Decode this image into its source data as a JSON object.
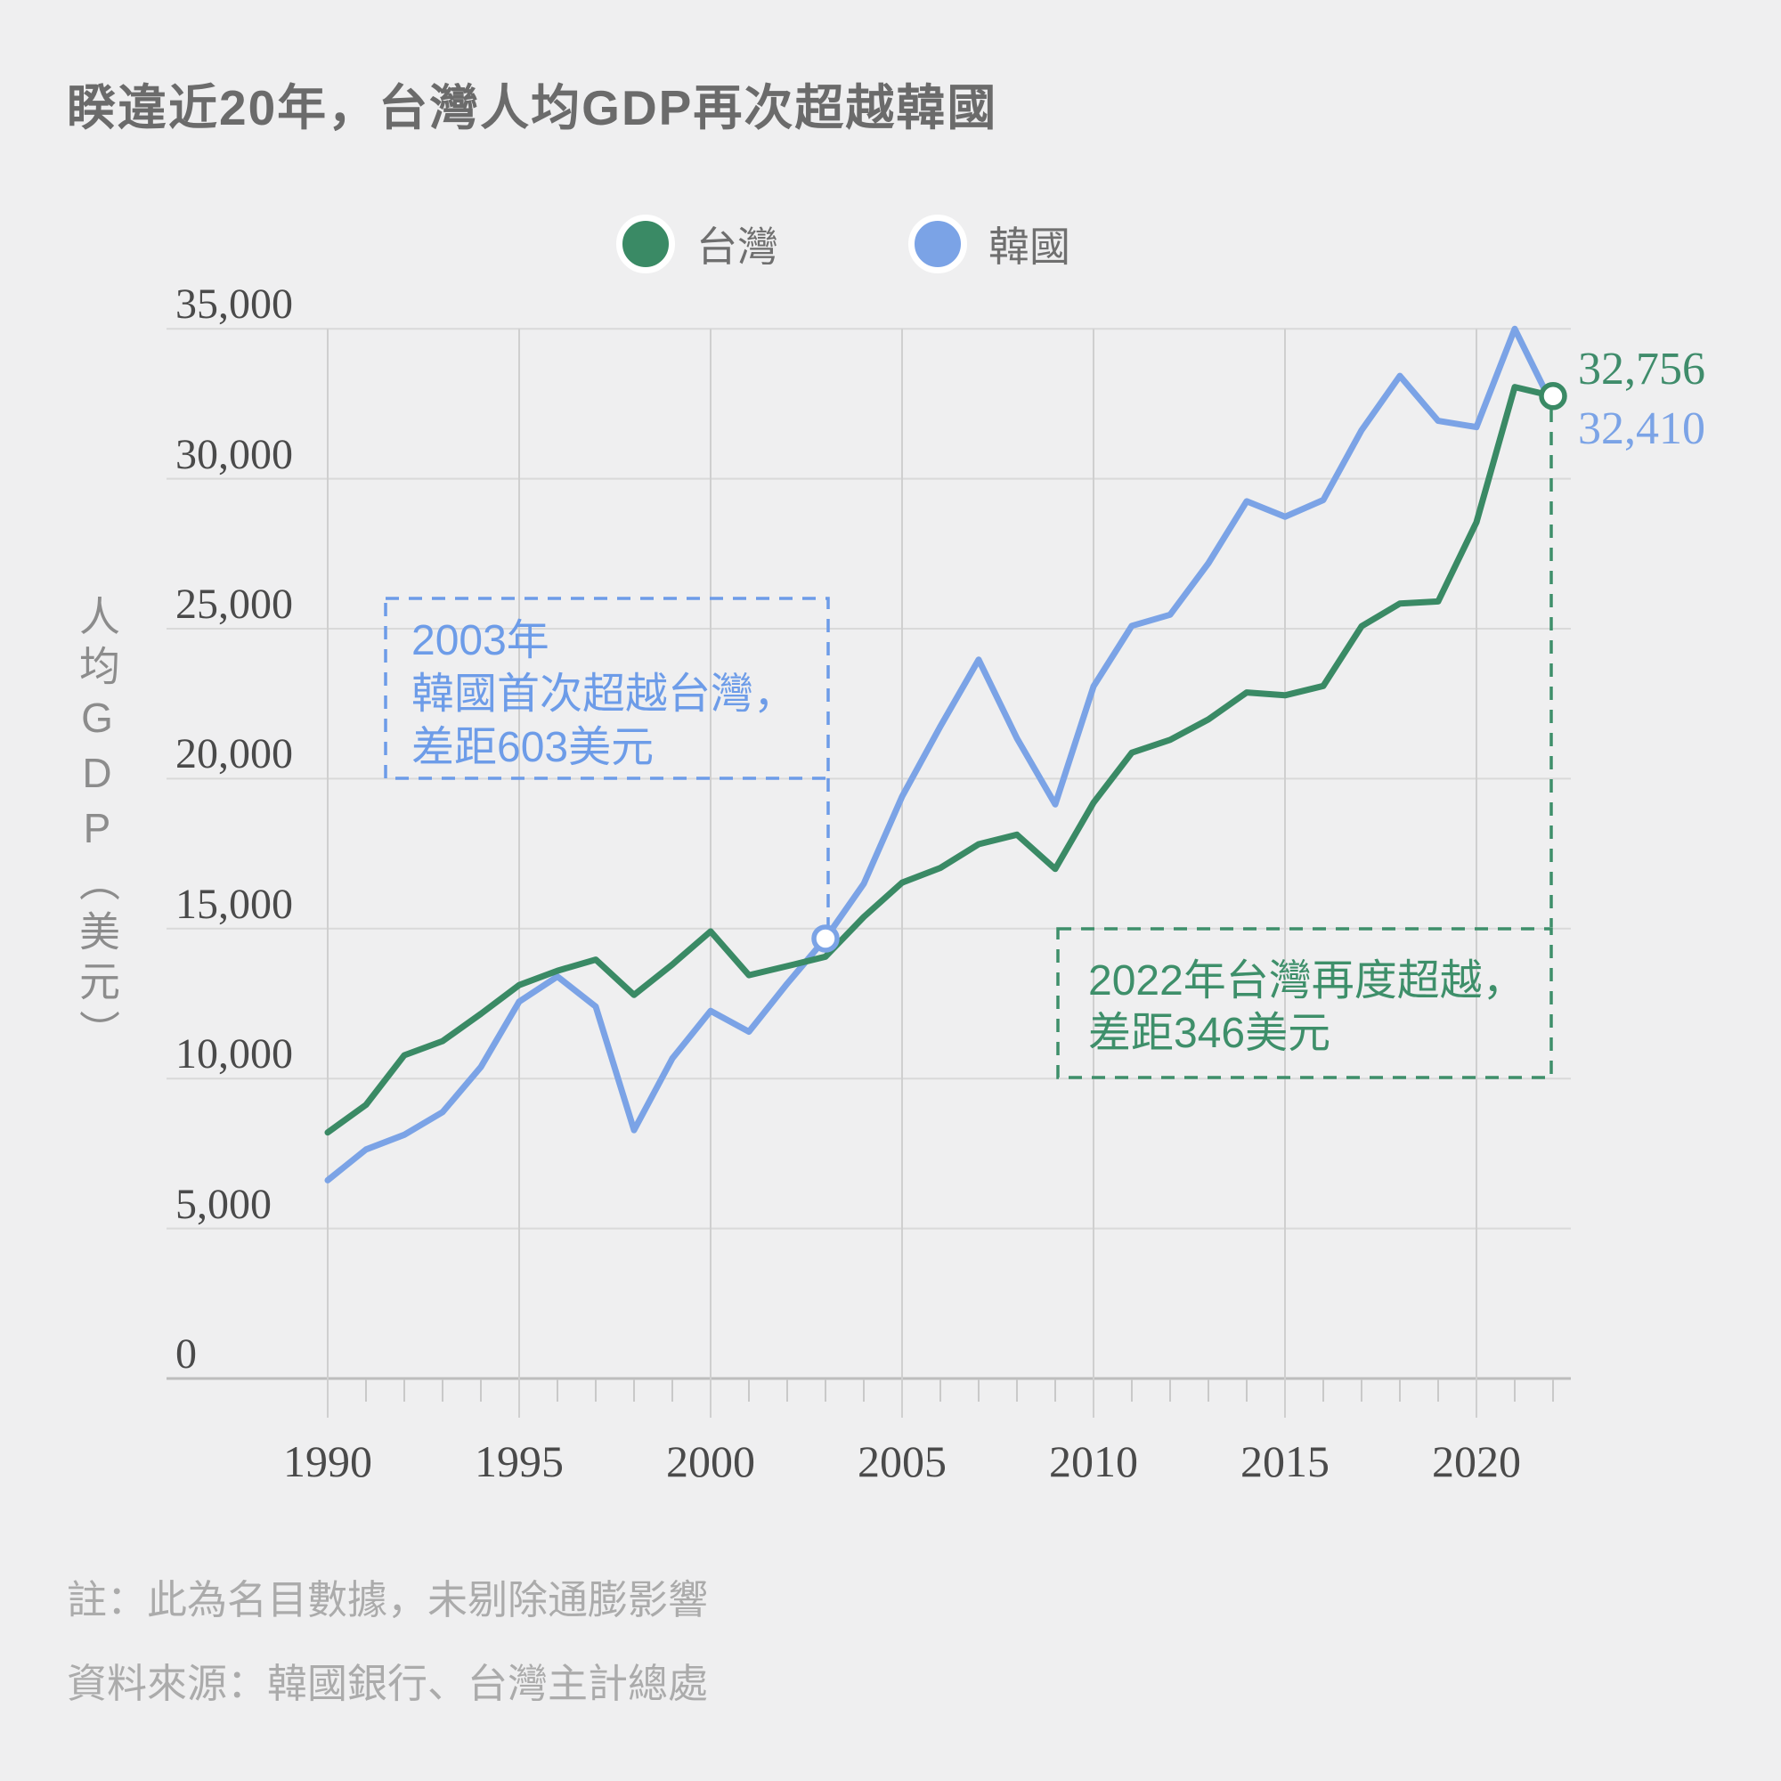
{
  "title": "睽違近20年，台灣人均GDP再次超越韓國",
  "legend": [
    {
      "label": "台灣",
      "color": "#3a8a65"
    },
    {
      "label": "韓國",
      "color": "#7ba3e6"
    }
  ],
  "y_axis": {
    "title": "人均GDP（美元）",
    "tick_values": [
      0,
      5000,
      10000,
      15000,
      20000,
      25000,
      30000,
      35000
    ],
    "tick_labels": [
      "0",
      "5,000",
      "10,000",
      "15,000",
      "20,000",
      "25,000",
      "30,000",
      "35,000"
    ]
  },
  "x_axis": {
    "tick_years": [
      1990,
      1995,
      2000,
      2005,
      2010,
      2015,
      2020
    ]
  },
  "annotations": [
    {
      "year": 2003,
      "color": "#6d9ce8",
      "lines": [
        "2003年",
        "韓國首次超越台灣，",
        "差距603美元"
      ]
    },
    {
      "year": 2022,
      "color": "#3e8f6a",
      "lines": [
        "2022年台灣再度超越，",
        "差距346美元"
      ]
    }
  ],
  "end_labels": {
    "taiwan": "32,756",
    "korea": "32,410"
  },
  "notes": [
    "註：此為名目數據，未剔除通膨影響",
    "資料來源：韓國銀行、台灣主計總處"
  ],
  "chart_data": {
    "type": "line",
    "title": "睽違近20年，台灣人均GDP再次超越韓國",
    "ylabel": "人均GDP（美元）",
    "ylim": [
      0,
      35000
    ],
    "grid": true,
    "legend_position": "top-center",
    "x": [
      1990,
      1991,
      1992,
      1993,
      1994,
      1995,
      1996,
      1997,
      1998,
      1999,
      2000,
      2001,
      2002,
      2003,
      2004,
      2005,
      2006,
      2007,
      2008,
      2009,
      2010,
      2011,
      2012,
      2013,
      2014,
      2015,
      2016,
      2017,
      2018,
      2019,
      2020,
      2021,
      2022
    ],
    "series": [
      {
        "name": "台灣",
        "color": "#3a8a65",
        "values": [
          8205,
          9125,
          10778,
          11250,
          12160,
          13119,
          13597,
          13968,
          12787,
          13804,
          14908,
          13448,
          13750,
          14066,
          15388,
          16532,
          17026,
          17814,
          18131,
          16988,
          19197,
          20866,
          21295,
          21973,
          22874,
          22780,
          23091,
          25080,
          25838,
          25908,
          28549,
          33059,
          32756
        ]
      },
      {
        "name": "韓國",
        "color": "#7ba3e6",
        "values": [
          6610,
          7637,
          8127,
          8882,
          10385,
          12565,
          13403,
          12398,
          8282,
          10672,
          12257,
          11561,
          13165,
          14669,
          16496,
          19403,
          21743,
          23968,
          21345,
          19143,
          23077,
          25096,
          25467,
          27183,
          29250,
          28732,
          29289,
          31617,
          33429,
          31929,
          31721,
          34998,
          32410
        ]
      }
    ],
    "markers": [
      {
        "year": 2003,
        "series": "韓國",
        "value": 14669
      },
      {
        "year": 2022,
        "series": "台灣",
        "value": 32756
      }
    ]
  }
}
